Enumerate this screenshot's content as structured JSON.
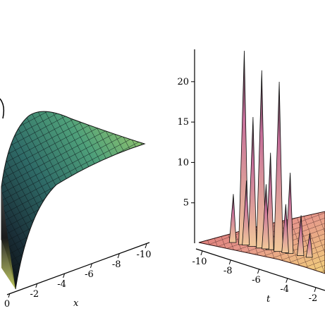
{
  "chart_data": [
    {
      "type": "surface3d",
      "colormap": "blue-green-yellow",
      "axis_label_x": "x",
      "x_ticks": [
        "0",
        "-2",
        "-4",
        "-6",
        "-8",
        "-10"
      ],
      "x_range": [
        -10,
        0
      ],
      "description_values": {
        "shape": "rises steeply near x = 0 and decays toward x = -10",
        "samples_x": [
          0,
          -1,
          -2,
          -3,
          -4,
          -5,
          -6,
          -7,
          -8,
          -9,
          -10
        ],
        "relative_height": [
          1.0,
          0.78,
          0.6,
          0.47,
          0.36,
          0.28,
          0.2,
          0.14,
          0.09,
          0.05,
          0.02
        ]
      }
    },
    {
      "type": "surface3d",
      "colormap": "red-pink-yellow",
      "axis_label_t": "t",
      "t_ticks": [
        "-10",
        "-8",
        "-6",
        "-4",
        "-2"
      ],
      "t_range": [
        -10,
        0
      ],
      "z_ticks": [
        "5",
        "10",
        "15",
        "20"
      ],
      "z_range": [
        0,
        24
      ],
      "spikes": [
        {
          "t": -7.0,
          "z": 24
        },
        {
          "t": -5.4,
          "z": 22
        },
        {
          "t": -3.8,
          "z": 21
        },
        {
          "t": -6.2,
          "z": 16
        },
        {
          "t": -4.6,
          "z": 12
        },
        {
          "t": -2.8,
          "z": 10
        },
        {
          "t": -8.0,
          "z": 6
        },
        {
          "t": -6.8,
          "z": 8
        },
        {
          "t": -5.0,
          "z": 8
        },
        {
          "t": -3.2,
          "z": 6
        },
        {
          "t": -1.8,
          "z": 5
        },
        {
          "t": -1.0,
          "z": 3
        }
      ]
    }
  ]
}
